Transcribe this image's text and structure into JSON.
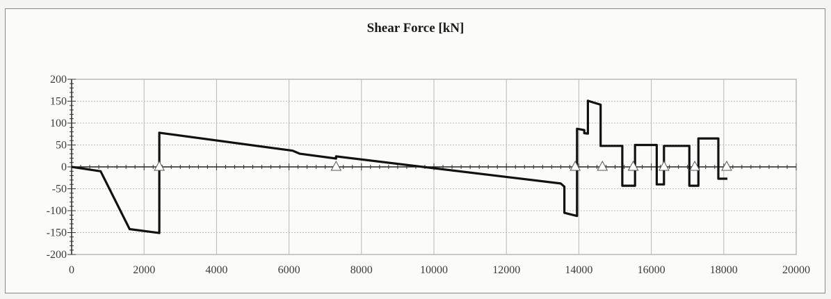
{
  "chart_data": {
    "type": "line",
    "title": "Shear Force [kN]",
    "xlabel": "",
    "ylabel": "",
    "xlim": [
      0,
      20000
    ],
    "ylim": [
      -200,
      200
    ],
    "x_ticks": [
      0,
      2000,
      4000,
      6000,
      8000,
      10000,
      12000,
      14000,
      16000,
      18000,
      20000
    ],
    "y_ticks": [
      200,
      150,
      100,
      50,
      0,
      -50,
      -100,
      -150,
      -200
    ],
    "grid": true,
    "legend": "none",
    "colors": {
      "line": "#111111",
      "grid": "#b8b8b8",
      "support_marker": "#ffffff"
    },
    "series": [
      {
        "x": [
          0,
          800,
          1600,
          2420,
          2420,
          6100,
          6300,
          7300,
          7300,
          13500,
          13600,
          13600,
          13850,
          13850,
          13950,
          13950,
          14150,
          14150,
          14250,
          14250,
          14400,
          14600,
          14600,
          15000,
          15200,
          15200,
          15450,
          15450,
          15550,
          15550,
          16000,
          16000,
          16150,
          16150,
          16350,
          16350,
          16800,
          16800,
          17050,
          17050,
          17300,
          17300,
          17700,
          17700,
          17850,
          17850,
          18100,
          18100
        ],
        "y": [
          0,
          -10,
          -142,
          -151,
          78,
          37,
          30,
          19,
          24,
          -38,
          -45,
          -105,
          -110,
          -110,
          -112,
          87,
          84,
          77,
          76,
          151,
          147,
          142,
          48,
          48,
          48,
          -43,
          -43,
          -43,
          -43,
          50,
          50,
          50,
          50,
          -40,
          -40,
          48,
          48,
          48,
          48,
          -43,
          -43,
          65,
          65,
          65,
          65,
          -27,
          -27,
          -27
        ]
      }
    ],
    "support_markers_x": [
      2420,
      7300,
      13900,
      14650,
      15500,
      16350,
      17200,
      18080
    ]
  }
}
